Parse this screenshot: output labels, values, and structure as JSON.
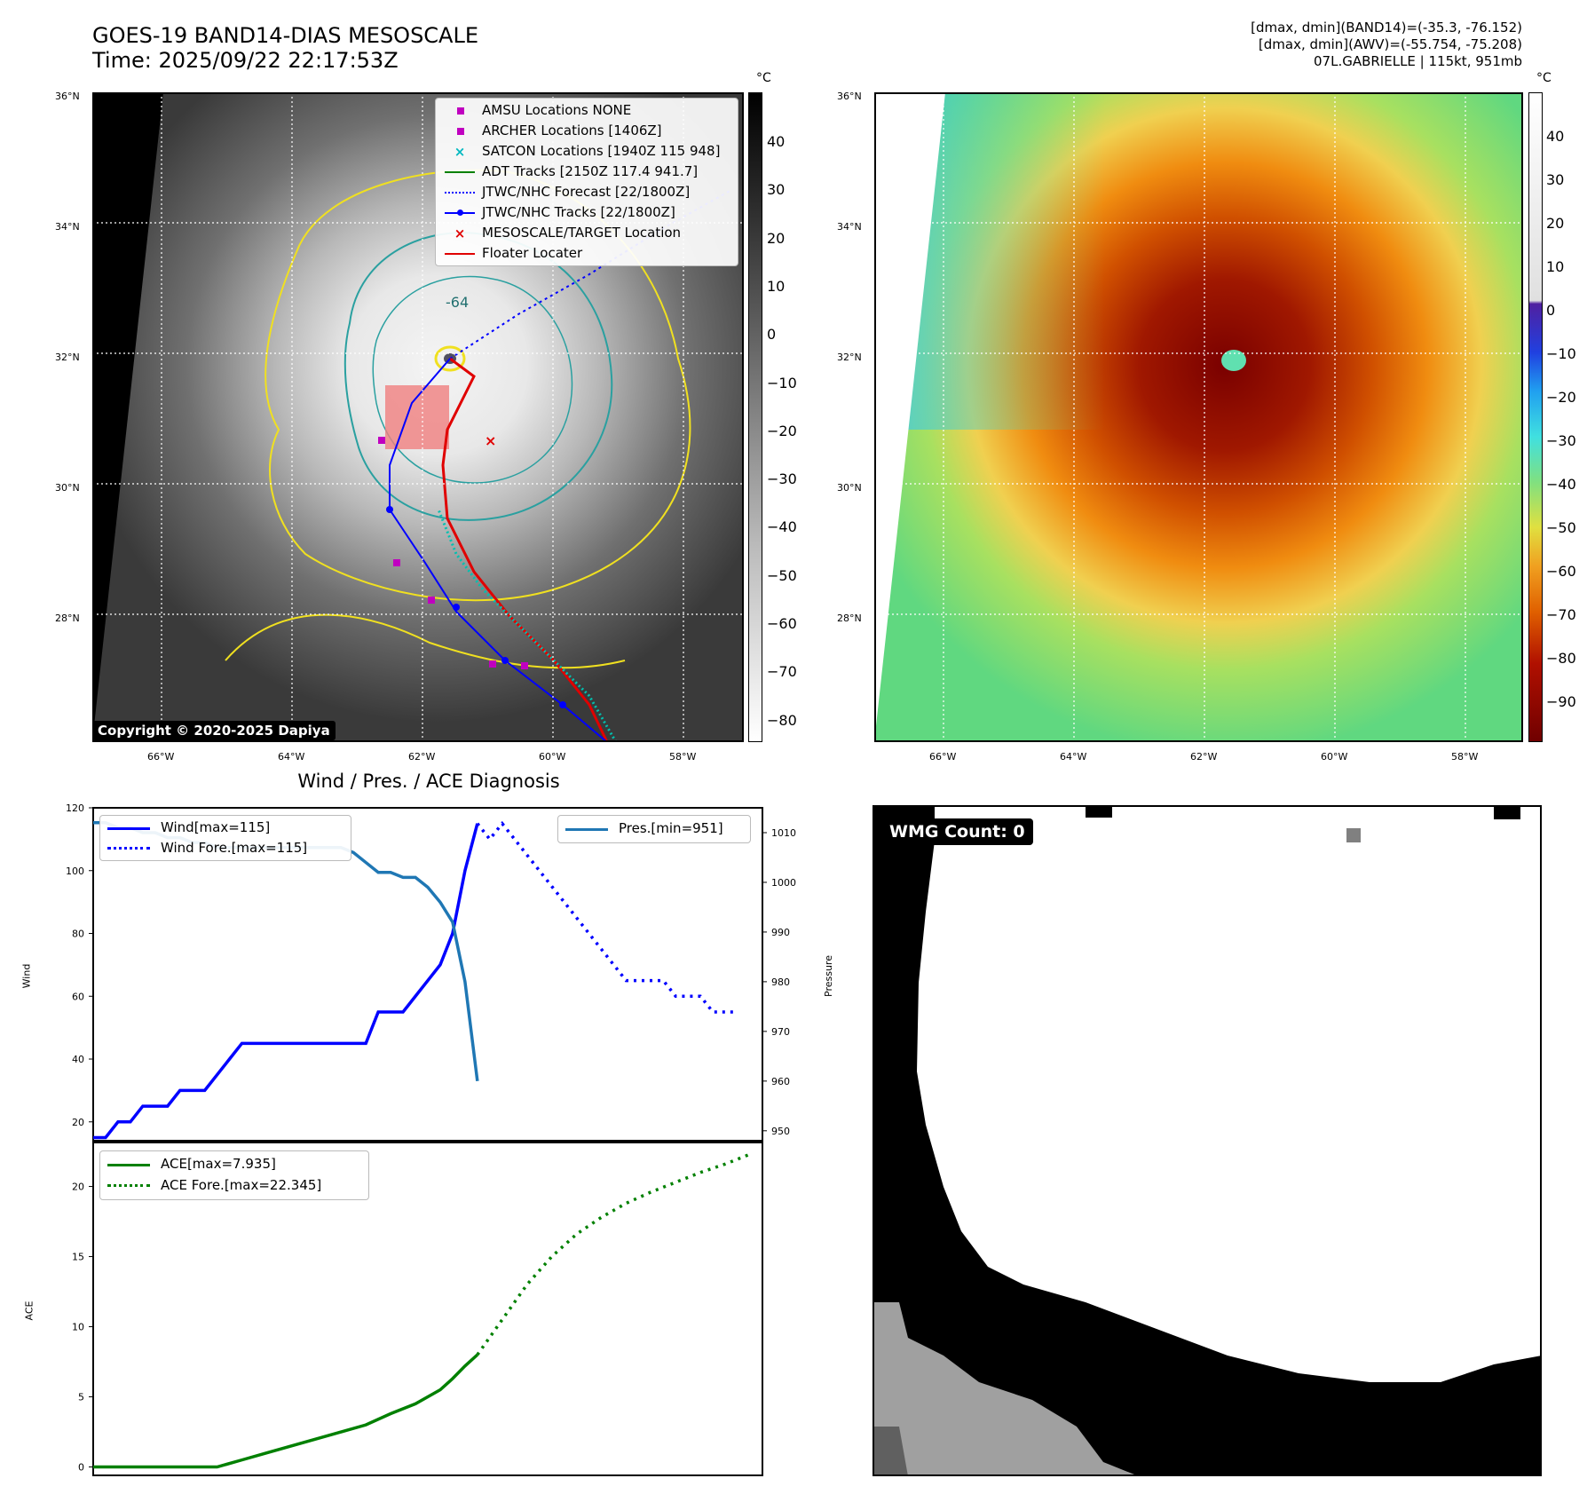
{
  "header": {
    "title_line1": "GOES-19 BAND14-DIAS MESOSCALE",
    "title_line2": "Time: 2025/09/22 22:17:53Z",
    "info_line1": "[dmax, dmin](BAND14)=(-35.3, -76.152)",
    "info_line2": "[dmax, dmin](AWV)=(-55.754, -75.208)",
    "info_line3": "07L.GABRIELLE | 115kt, 951mb"
  },
  "maps": {
    "lat_labels": [
      "36°N",
      "34°N",
      "32°N",
      "30°N",
      "28°N"
    ],
    "lon_labels": [
      "66°W",
      "64°W",
      "62°W",
      "60°W",
      "58°W"
    ],
    "contour_label": "-64",
    "copyright": "Copyright © 2020-2025 Dapiya",
    "unit_label": "°C"
  },
  "legend": {
    "items": [
      {
        "label": "AMSU Locations NONE",
        "color": "#c000c0",
        "kind": "square"
      },
      {
        "label": "ARCHER Locations [1406Z]",
        "color": "#c000c0",
        "kind": "square"
      },
      {
        "label": "SATCON Locations [1940Z 115 948]",
        "color": "#00b8c0",
        "kind": "x"
      },
      {
        "label": "ADT Tracks [2150Z 117.4 941.7]",
        "color": "#008000",
        "kind": "line"
      },
      {
        "label": "JTWC/NHC Forecast [22/1800Z]",
        "color": "#0000ff",
        "kind": "dotted"
      },
      {
        "label": "JTWC/NHC Tracks [22/1800Z]",
        "color": "#0000ff",
        "kind": "dotline"
      },
      {
        "label": "MESOSCALE/TARGET Location",
        "color": "#e00000",
        "kind": "x"
      },
      {
        "label": "Floater Locater",
        "color": "#e00000",
        "kind": "line"
      }
    ]
  },
  "colorbars": {
    "gray_ticks": [
      "40",
      "30",
      "20",
      "10",
      "0",
      "−10",
      "−20",
      "−30",
      "−40",
      "−50",
      "−60",
      "−70",
      "−80"
    ],
    "color_ticks": [
      "40",
      "30",
      "20",
      "10",
      "0",
      "−10",
      "−20",
      "−30",
      "−40",
      "−50",
      "−60",
      "−70",
      "−80",
      "−90"
    ]
  },
  "chart_data": [
    {
      "type": "line",
      "title": "Wind / Pres. / ACE Diagnosis",
      "ylabel": "Wind",
      "y2label": "Pressure",
      "ylim": [
        14,
        120
      ],
      "y2lim": [
        948,
        1015
      ],
      "yticks": [
        20,
        40,
        60,
        80,
        100,
        120
      ],
      "y2ticks": [
        950,
        960,
        970,
        980,
        990,
        1000,
        1010
      ],
      "series": [
        {
          "name": "Wind[max=115]",
          "color": "#0000ff",
          "style": "solid",
          "x": [
            0,
            2,
            4,
            6,
            8,
            10,
            12,
            14,
            16,
            18,
            20,
            22,
            24,
            26,
            28,
            30,
            32,
            34,
            36,
            38,
            40,
            42,
            44,
            46,
            48,
            50,
            52,
            54,
            56,
            58,
            60,
            62,
            64,
            66
          ],
          "values": [
            15,
            15,
            20,
            20,
            25,
            25,
            25,
            30,
            30,
            30,
            35,
            40,
            45,
            45,
            45,
            45,
            45,
            45,
            45,
            45,
            45,
            45,
            45,
            55,
            55,
            55,
            60,
            65,
            70,
            80,
            100,
            115,
            null,
            null
          ]
        },
        {
          "name": "Wind Fore.[max=115]",
          "color": "#0000ff",
          "style": "dotted",
          "x": [
            62,
            64,
            66,
            68,
            70,
            72,
            74,
            76,
            78,
            80,
            82,
            84,
            86,
            88,
            90,
            92,
            94,
            96,
            98,
            100,
            102,
            104
          ],
          "values": [
            115,
            110,
            115,
            110,
            105,
            100,
            95,
            90,
            85,
            80,
            75,
            70,
            65,
            65,
            65,
            65,
            60,
            60,
            60,
            55,
            55,
            55
          ]
        },
        {
          "name": "Pres.[min=951]",
          "color": "#1f77b4",
          "style": "solid",
          "axis": "right",
          "x": [
            0,
            2,
            4,
            6,
            8,
            10,
            12,
            14,
            16,
            18,
            20,
            22,
            24,
            26,
            28,
            30,
            32,
            34,
            36,
            38,
            40,
            42,
            44,
            46,
            48,
            50,
            52,
            54,
            56,
            58,
            60,
            62
          ],
          "values": [
            1012,
            1012,
            1011,
            1011,
            1010,
            1010,
            1009,
            1009,
            1008,
            1008,
            1007,
            1007,
            1007,
            1007,
            1007,
            1007,
            1007,
            1007,
            1007,
            1007,
            1007,
            1006,
            1004,
            1002,
            1002,
            1001,
            1001,
            999,
            996,
            992,
            980,
            960
          ]
        }
      ]
    },
    {
      "type": "line",
      "ylabel": "ACE",
      "ylim": [
        -0.6,
        23.2
      ],
      "yticks": [
        0,
        5,
        10,
        15,
        20
      ],
      "series": [
        {
          "name": "ACE[max=7.935]",
          "color": "#008000",
          "style": "solid",
          "x": [
            0,
            4,
            8,
            12,
            16,
            20,
            24,
            28,
            32,
            36,
            40,
            44,
            48,
            52,
            56,
            58,
            60,
            62
          ],
          "values": [
            0,
            0,
            0,
            0,
            0,
            0,
            0.5,
            1.0,
            1.5,
            2.0,
            2.5,
            3.0,
            3.8,
            4.5,
            5.5,
            6.3,
            7.2,
            8.0
          ]
        },
        {
          "name": "ACE Fore.[max=22.345]",
          "color": "#008000",
          "style": "dotted",
          "x": [
            62,
            66,
            70,
            74,
            78,
            82,
            86,
            90,
            94,
            98,
            102,
            106
          ],
          "values": [
            8.0,
            10.5,
            13.0,
            15.0,
            16.6,
            17.8,
            18.8,
            19.6,
            20.3,
            21.0,
            21.6,
            22.3
          ]
        }
      ]
    }
  ],
  "wmg": {
    "count_label": "WMG Count: 0"
  }
}
